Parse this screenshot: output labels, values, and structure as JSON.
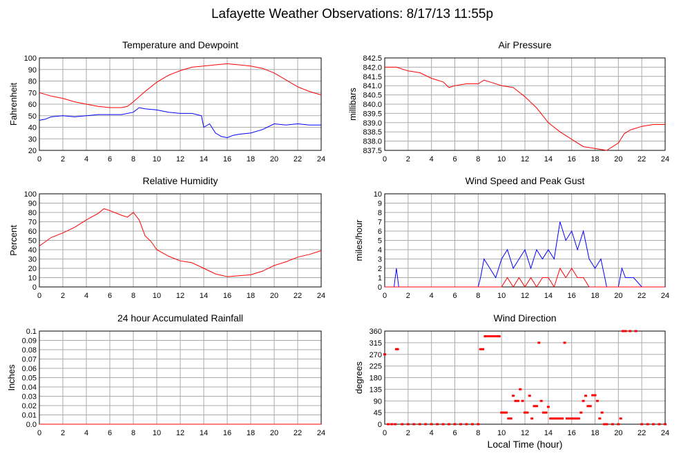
{
  "page": {
    "title": "Lafayette Weather Observations: 8/17/13 11:55p",
    "x_label_bottom": "Local Time (hour)"
  },
  "x_axis": {
    "ticks": [
      0,
      2,
      4,
      6,
      8,
      10,
      12,
      14,
      16,
      18,
      20,
      22,
      24
    ],
    "range": [
      0,
      24
    ]
  },
  "colors": {
    "red": "#ff0000",
    "blue": "#0000ff",
    "grid": "#aaaaaa"
  },
  "chart_data": [
    {
      "id": "temp",
      "type": "line",
      "title": "Temperature and Dewpoint",
      "ylabel": "Fahrenheit",
      "xlabel": "",
      "ylim": [
        20,
        100
      ],
      "yticks": [
        "20",
        "30",
        "40",
        "50",
        "60",
        "70",
        "80",
        "90",
        "100"
      ],
      "grid": true,
      "series": [
        {
          "color": "#ff0000",
          "x": [
            0,
            1,
            2,
            3,
            4,
            5,
            6,
            7,
            7.5,
            8,
            9,
            10,
            11,
            12,
            13,
            14,
            15,
            16,
            17,
            18,
            19,
            20,
            21,
            22,
            23,
            24
          ],
          "values": [
            70,
            67,
            65,
            62,
            60,
            58,
            57,
            57,
            58,
            62,
            71,
            79,
            85,
            89,
            92,
            93,
            94,
            95,
            94,
            93,
            91,
            87,
            81,
            75,
            71,
            68
          ]
        },
        {
          "color": "#0000ff",
          "x": [
            0,
            0.5,
            1,
            2,
            3,
            4,
            5,
            6,
            7,
            8,
            8.5,
            9,
            10,
            11,
            12,
            13,
            13.8,
            14,
            14.5,
            15,
            15.5,
            16,
            16.5,
            17,
            18,
            19,
            20,
            21,
            22,
            23,
            24
          ],
          "values": [
            46,
            47,
            49,
            50,
            49,
            50,
            51,
            51,
            51,
            53,
            57,
            56,
            55,
            53,
            52,
            52,
            50,
            40,
            43,
            35,
            32,
            31,
            33,
            34,
            35,
            38,
            43,
            42,
            43,
            42,
            42
          ]
        }
      ]
    },
    {
      "id": "pressure",
      "type": "line",
      "title": "Air Pressure",
      "ylabel": "millibars",
      "xlabel": "",
      "ylim": [
        837.5,
        842.5
      ],
      "yticks": [
        "837.5",
        "838.0",
        "838.5",
        "839.0",
        "839.5",
        "840.0",
        "840.5",
        "841.0",
        "841.5",
        "842.0",
        "842.5"
      ],
      "grid": true,
      "series": [
        {
          "color": "#ff0000",
          "x": [
            0,
            1,
            1.5,
            2,
            3,
            4,
            5,
            5.5,
            6,
            7,
            8,
            8.5,
            9,
            10,
            11,
            12,
            13,
            14,
            15,
            16,
            17,
            18,
            19,
            20,
            20.5,
            21,
            22,
            23,
            24
          ],
          "values": [
            842.0,
            842.0,
            841.9,
            841.8,
            841.7,
            841.4,
            841.2,
            840.9,
            841.0,
            841.1,
            841.1,
            841.3,
            841.2,
            841.0,
            840.9,
            840.4,
            839.8,
            839.0,
            838.5,
            838.1,
            837.7,
            837.6,
            837.5,
            837.9,
            838.4,
            838.6,
            838.8,
            838.9,
            838.9
          ]
        }
      ]
    },
    {
      "id": "humidity",
      "type": "line",
      "title": "Relative Humidity",
      "ylabel": "Percent",
      "xlabel": "",
      "ylim": [
        0,
        100
      ],
      "yticks": [
        "0",
        "10",
        "20",
        "30",
        "40",
        "50",
        "60",
        "70",
        "80",
        "90",
        "100"
      ],
      "grid": true,
      "series": [
        {
          "color": "#ff0000",
          "x": [
            0,
            1,
            2,
            3,
            4,
            5,
            5.5,
            6,
            7,
            7.5,
            8,
            8.5,
            9,
            9.5,
            10,
            11,
            12,
            13,
            14,
            15,
            16,
            17,
            18,
            19,
            20,
            21,
            22,
            23,
            24
          ],
          "values": [
            44,
            53,
            58,
            64,
            72,
            79,
            84,
            82,
            77,
            75,
            80,
            72,
            55,
            49,
            40,
            33,
            28,
            26,
            20,
            14,
            11,
            12,
            13,
            17,
            23,
            27,
            32,
            35,
            39
          ]
        }
      ]
    },
    {
      "id": "wind",
      "type": "line",
      "title": "Wind Speed and Peak Gust",
      "ylabel": "miles/hour",
      "xlabel": "",
      "ylim": [
        0,
        10
      ],
      "yticks": [
        "0",
        "1",
        "2",
        "3",
        "4",
        "5",
        "6",
        "7",
        "8",
        "9",
        "10"
      ],
      "grid": true,
      "series": [
        {
          "color": "#0000ff",
          "x": [
            0,
            0.8,
            1,
            1.2,
            2,
            8,
            8.2,
            8.5,
            9,
            9.5,
            10,
            10.5,
            11,
            11.5,
            12,
            12.5,
            13,
            13.5,
            14,
            14.5,
            15,
            15.5,
            16,
            16.5,
            17,
            17.5,
            18,
            18.5,
            19,
            20,
            20.3,
            20.6,
            21,
            21.3,
            22,
            24
          ],
          "values": [
            0,
            0,
            2,
            0,
            0,
            0,
            1,
            3,
            2,
            1,
            3,
            4,
            2,
            3,
            4,
            2,
            4,
            3,
            4,
            3,
            7,
            5,
            6,
            4,
            6,
            3,
            2,
            3,
            0,
            0,
            2,
            1,
            1,
            1,
            0,
            0
          ]
        },
        {
          "color": "#ff0000",
          "x": [
            0,
            10,
            10.5,
            11,
            11.5,
            12,
            12.5,
            13,
            13.5,
            14,
            14.5,
            15,
            15.5,
            16,
            16.5,
            17,
            17.5,
            18,
            24
          ],
          "values": [
            0,
            0,
            1,
            0,
            1,
            0,
            1,
            0,
            1,
            1,
            0,
            2,
            1,
            2,
            1,
            1,
            0,
            0,
            0
          ]
        }
      ]
    },
    {
      "id": "rain",
      "type": "line",
      "title": "24 hour Accumulated Rainfall",
      "ylabel": "Inches",
      "xlabel": "",
      "ylim": [
        0,
        0.1
      ],
      "yticks": [
        "0.0",
        "0.01",
        "0.02",
        "0.03",
        "0.04",
        "0.05",
        "0.06",
        "0.07",
        "0.08",
        "0.09",
        "0.1"
      ],
      "grid": true,
      "series": [
        {
          "color": "#ff0000",
          "x": [
            0,
            24
          ],
          "values": [
            0,
            0
          ]
        }
      ]
    },
    {
      "id": "direction",
      "type": "scatter",
      "title": "Wind Direction",
      "ylabel": "degrees",
      "xlabel": "Local Time (hour)",
      "ylim": [
        0,
        360
      ],
      "yticks": [
        "0",
        "45",
        "90",
        "135",
        "180",
        "225",
        "270",
        "315",
        "360"
      ],
      "grid": true,
      "series": [
        {
          "color": "#ff0000",
          "x": [
            0,
            0.3,
            0.6,
            0.9,
            1.0,
            1.1,
            1.5,
            2,
            2.5,
            3,
            3.5,
            4,
            4.5,
            5,
            5.5,
            6,
            6.5,
            7,
            7.5,
            8,
            8.2,
            8.4,
            8.6,
            8.8,
            9.0,
            9.2,
            9.4,
            9.6,
            9.8,
            10.0,
            10.2,
            10.4,
            10.6,
            10.8,
            11.0,
            11.2,
            11.4,
            11.6,
            11.8,
            12.0,
            12.2,
            12.4,
            12.6,
            12.8,
            13.0,
            13.2,
            13.4,
            13.6,
            13.8,
            14.0,
            14.2,
            14.4,
            14.6,
            14.8,
            15.0,
            15.2,
            15.4,
            15.6,
            15.8,
            16.0,
            16.2,
            16.4,
            16.6,
            16.8,
            17.0,
            17.2,
            17.4,
            17.6,
            17.8,
            18.0,
            18.2,
            18.4,
            18.6,
            18.8,
            19,
            19.5,
            20.0,
            20.2,
            20.4,
            20.6,
            21,
            21.5,
            22,
            22.5,
            23,
            23.5,
            24
          ],
          "values": [
            270,
            0,
            0,
            0,
            290,
            290,
            0,
            0,
            0,
            0,
            0,
            0,
            0,
            0,
            0,
            0,
            0,
            0,
            0,
            0,
            290,
            290,
            340,
            340,
            340,
            340,
            340,
            340,
            340,
            45,
            45,
            45,
            22,
            22,
            110,
            90,
            90,
            135,
            90,
            45,
            45,
            110,
            22,
            70,
            70,
            315,
            90,
            45,
            45,
            67,
            22,
            22,
            22,
            22,
            22,
            22,
            315,
            22,
            22,
            22,
            22,
            22,
            22,
            45,
            90,
            110,
            70,
            70,
            112,
            112,
            90,
            22,
            45,
            0,
            0,
            0,
            0,
            22,
            360,
            360,
            360,
            360,
            0,
            0,
            0,
            0,
            0
          ]
        }
      ]
    }
  ]
}
